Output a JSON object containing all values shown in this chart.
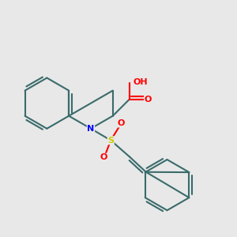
{
  "background_color": "#e8e8e8",
  "bond_color": "#3a6b6b",
  "n_color": "#0000ff",
  "o_color": "#ff0000",
  "s_color": "#cccc00",
  "h_color": "#808080",
  "lw": 1.5,
  "dbo": 0.012,
  "atoms": {
    "comment": "coordinates in figure units 0-1, y=0 bottom"
  }
}
